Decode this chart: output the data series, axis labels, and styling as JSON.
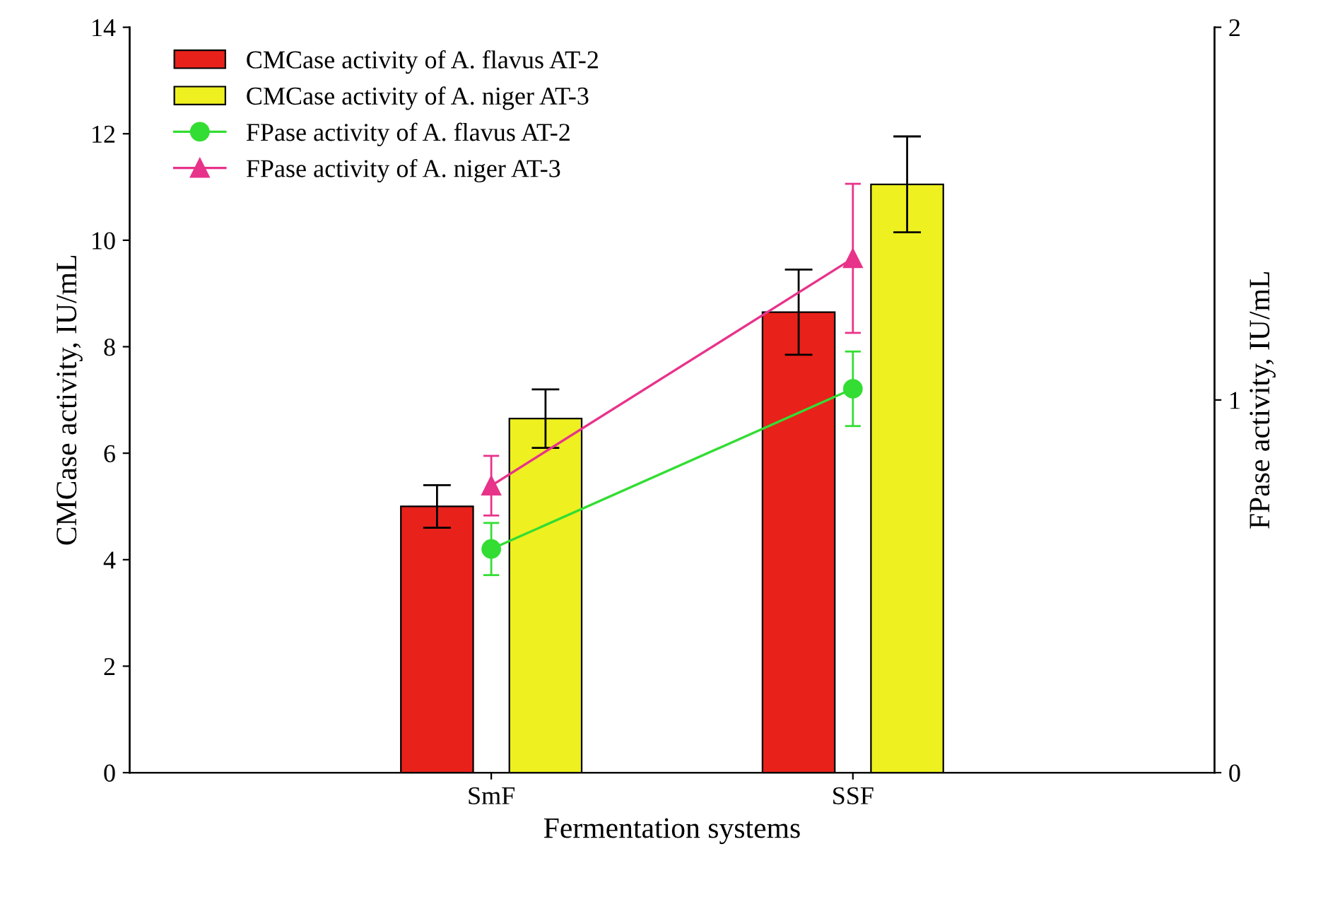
{
  "chart_data": {
    "type": "bar",
    "xlabel": "Fermentation systems",
    "ylabel": "CMCase activity, IU/mL",
    "y2label": "FPase activity, IU/mL",
    "categories": [
      "SmF",
      "SSF"
    ],
    "series": [
      {
        "name": "CMCase activity of A. flavus AT-2",
        "color": "#e8211b",
        "values": [
          5.0,
          8.65
        ],
        "errors": [
          0.4,
          0.8
        ]
      },
      {
        "name": "CMCase activity of A. niger AT-3",
        "color": "#eef020",
        "values": [
          6.65,
          11.05
        ],
        "errors": [
          0.55,
          0.9
        ]
      },
      {
        "name": "FPase activity of A. flavus AT-2",
        "type": "line",
        "axis": "y2",
        "marker": "circle",
        "color": "#33dd33",
        "values": [
          0.6,
          1.03
        ],
        "errors": [
          0.07,
          0.1
        ]
      },
      {
        "name": "FPase activity of A. niger AT-3",
        "type": "line",
        "axis": "y2",
        "marker": "triangle",
        "color": "#e8338a",
        "values": [
          0.77,
          1.38
        ],
        "errors": [
          0.08,
          0.2
        ]
      }
    ],
    "ylim": [
      0,
      14
    ],
    "yticks": [
      0,
      2,
      4,
      6,
      8,
      10,
      12,
      14
    ],
    "y2lim": [
      0,
      2
    ],
    "y2ticks": [
      0,
      1,
      2
    ],
    "legend": "top left",
    "grid": false
  }
}
